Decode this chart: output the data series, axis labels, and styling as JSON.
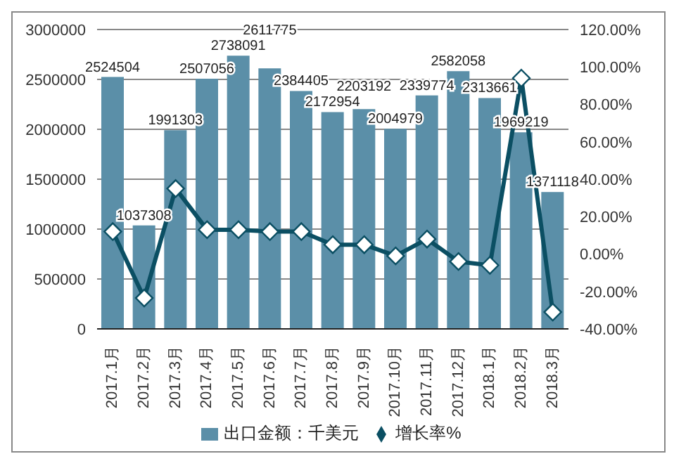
{
  "chart_data": {
    "type": "bar",
    "categories": [
      "2017.1月",
      "2017.2月",
      "2017.3月",
      "2017.4月",
      "2017.5月",
      "2017.6月",
      "2017.7月",
      "2017.8月",
      "2017.9月",
      "2017.10月",
      "2017.11月",
      "2017.12月",
      "2018.1月",
      "2018.2月",
      "2018.3月"
    ],
    "series": [
      {
        "name": "出口金额：千美元",
        "color": "#5b8fa8",
        "values": [
          2524504,
          1037308,
          1991303,
          2507056,
          2738091,
          2611775,
          2384405,
          2172954,
          2203192,
          2004979,
          2339774,
          2582058,
          2313661,
          1969219,
          1371118
        ],
        "value_labels": [
          "2524504",
          "1037308",
          "1991303",
          "2507056",
          "2738091",
          "2611775",
          "2384405",
          "2172954",
          "2203192",
          "2004979",
          "2339774",
          "2582058",
          "2313661",
          "1969219",
          "1371118"
        ]
      },
      {
        "name": "增长率%",
        "type": "line",
        "axis": "y2",
        "color": "#0b4f63",
        "marker": "diamond",
        "values": [
          12,
          -23.5,
          35,
          13,
          13,
          12,
          12,
          5,
          5,
          -1,
          8,
          -4,
          -6,
          94,
          -31
        ]
      }
    ],
    "ylim": [
      0,
      3000000
    ],
    "yticks": [
      0,
      500000,
      1000000,
      1500000,
      2000000,
      2500000,
      3000000
    ],
    "y2lim": [
      -40,
      120
    ],
    "y2ticks": [
      {
        "value": -40,
        "label": "-40.00%"
      },
      {
        "value": -20,
        "label": "-20.00%"
      },
      {
        "value": 0,
        "label": "0.00%"
      },
      {
        "value": 20,
        "label": "20.00%"
      },
      {
        "value": 40,
        "label": "40.00%"
      },
      {
        "value": 60,
        "label": "60.00%"
      },
      {
        "value": 80,
        "label": "80.00%"
      },
      {
        "value": 100,
        "label": "100.00%"
      },
      {
        "value": 120,
        "label": "120.00%"
      }
    ],
    "grid": "y",
    "legend": "bottom"
  }
}
